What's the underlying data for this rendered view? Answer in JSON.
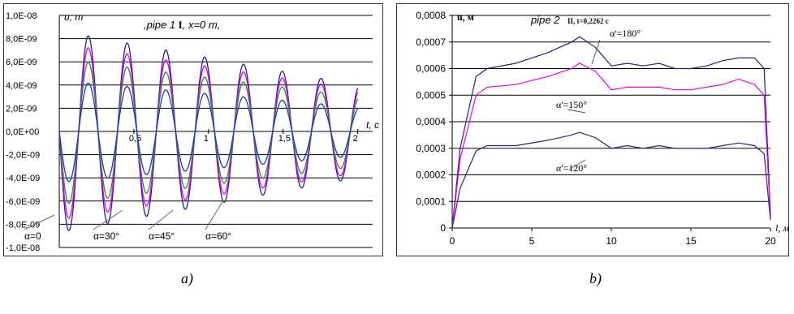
{
  "chart_data": [
    {
      "type": "line",
      "title_prefix": ",",
      "title_italic": "pipe 1",
      "title_roman": "I",
      "title_tail": ", x=0 m,",
      "ylabel": "u, m",
      "xlabel": "t, c",
      "xlim": [
        0,
        2.1
      ],
      "ylim": [
        -1e-08,
        1e-08
      ],
      "xticks": [
        {
          "v": 0.5,
          "label": "0,5"
        },
        {
          "v": 1.0,
          "label": "1"
        },
        {
          "v": 1.5,
          "label": "1,5"
        },
        {
          "v": 2.0,
          "label": "2"
        }
      ],
      "yticks": [
        {
          "v": 1e-08,
          "label": "1,0E-08"
        },
        {
          "v": 8e-09,
          "label": "8,0E-09"
        },
        {
          "v": 6e-09,
          "label": "6,0E-09"
        },
        {
          "v": 4e-09,
          "label": "4,0E-09"
        },
        {
          "v": 2e-09,
          "label": "2,0E-09"
        },
        {
          "v": 0,
          "label": "0,0E+00"
        },
        {
          "v": -2e-09,
          "label": "-2,0E-09"
        },
        {
          "v": -4e-09,
          "label": "-4,0E-09"
        },
        {
          "v": -6e-09,
          "label": "-6,0E-09"
        },
        {
          "v": -8e-09,
          "label": "-8,0E-09"
        },
        {
          "v": -1e-08,
          "label": "-1,0E-08"
        }
      ],
      "grid": true,
      "series": [
        {
          "name": "α=0",
          "color": "#1f1f9a",
          "amplitude_start": 8.7e-09,
          "amplitude_end": 4e-09
        },
        {
          "name": "α=30°",
          "color": "#e000e0",
          "amplitude_start": 7.6e-09,
          "amplitude_end": 3.6e-09
        },
        {
          "name": "α=45°",
          "color": "#2a8a2a",
          "amplitude_start": 6.3e-09,
          "amplitude_end": 3e-09
        },
        {
          "name": "α=60°",
          "color": "#2030d0",
          "amplitude_start": 4.4e-09,
          "amplitude_end": 2.1e-09
        }
      ],
      "period": 0.26,
      "labels": [
        "α=0",
        "α=30°",
        "α=45°",
        "α=60°"
      ]
    },
    {
      "type": "line",
      "title_italic": "pipe 2",
      "title_small": "II, t=0,2262 c",
      "ylabel": "u, м",
      "xlabel": "l, м",
      "xlim": [
        0,
        20
      ],
      "ylim": [
        0,
        0.0008
      ],
      "xticks": [
        {
          "v": 0,
          "label": "0"
        },
        {
          "v": 5,
          "label": "5"
        },
        {
          "v": 10,
          "label": "10"
        },
        {
          "v": 15,
          "label": "15"
        },
        {
          "v": 20,
          "label": "20"
        }
      ],
      "yticks": [
        {
          "v": 0.0008,
          "label": "0,0008"
        },
        {
          "v": 0.0007,
          "label": "0,0007"
        },
        {
          "v": 0.0006,
          "label": "0,0006"
        },
        {
          "v": 0.0005,
          "label": "0,0005"
        },
        {
          "v": 0.0004,
          "label": "0,0004"
        },
        {
          "v": 0.0003,
          "label": "0,0003"
        },
        {
          "v": 0.0002,
          "label": "0,0002"
        },
        {
          "v": 0.0001,
          "label": "0,0001"
        },
        {
          "v": 0,
          "label": "0"
        }
      ],
      "grid": true,
      "series": [
        {
          "name": "α=180°",
          "color": "#23237f",
          "x": [
            0,
            0.5,
            1.5,
            2.2,
            4,
            6,
            7.5,
            8,
            9,
            10,
            11,
            12,
            13,
            14,
            15,
            16,
            17,
            18,
            19,
            19.6,
            20
          ],
          "y": [
            0,
            0.0003,
            0.00057,
            0.0006,
            0.00062,
            0.00066,
            0.0007,
            0.00072,
            0.00068,
            0.00061,
            0.00062,
            0.00061,
            0.00062,
            0.0006,
            0.0006,
            0.00061,
            0.00063,
            0.00064,
            0.00064,
            0.0006,
            5e-05
          ]
        },
        {
          "name": "α=150°",
          "color": "#e800e8",
          "x": [
            0,
            0.5,
            1.5,
            2.2,
            4,
            6,
            7.5,
            8,
            9,
            10,
            11,
            12,
            13,
            14,
            15,
            16,
            17,
            18,
            19,
            19.6,
            20
          ],
          "y": [
            0,
            0.00026,
            0.0005,
            0.00053,
            0.00054,
            0.00057,
            0.0006,
            0.00062,
            0.00059,
            0.00052,
            0.00053,
            0.00053,
            0.00053,
            0.00052,
            0.00052,
            0.00053,
            0.00054,
            0.00056,
            0.00054,
            0.0005,
            4e-05
          ]
        },
        {
          "name": "α=120°",
          "color": "#27277f",
          "x": [
            0,
            0.5,
            1.5,
            2.2,
            4,
            6,
            7.5,
            8,
            9,
            10,
            11,
            12,
            13,
            14,
            15,
            16,
            17,
            18,
            19,
            19.6,
            20
          ],
          "y": [
            0,
            0.00015,
            0.00029,
            0.00031,
            0.00031,
            0.00033,
            0.00035,
            0.00036,
            0.00034,
            0.0003,
            0.00031,
            0.0003,
            0.00031,
            0.0003,
            0.0003,
            0.0003,
            0.00031,
            0.00032,
            0.00031,
            0.00028,
            3e-05
          ]
        }
      ],
      "labels": [
        "α'=180°",
        "α'=150°",
        "α'=120°"
      ]
    }
  ],
  "captions": {
    "a": "a)",
    "b": "b)"
  }
}
